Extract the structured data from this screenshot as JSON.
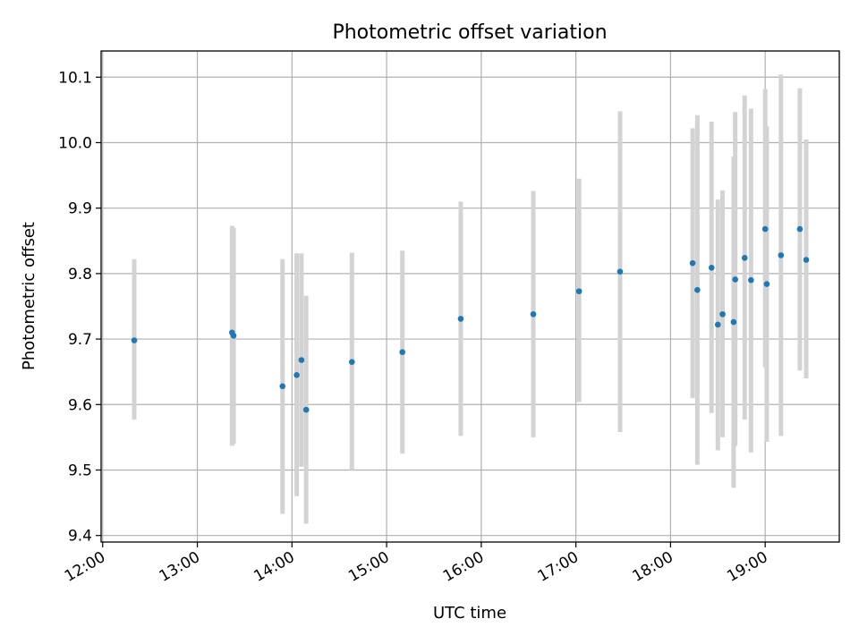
{
  "chart_data": {
    "type": "scatter",
    "title": "Photometric offset variation",
    "xlabel": "UTC time",
    "ylabel": "Photometric offset",
    "x_ticks": [
      "12:00",
      "13:00",
      "14:00",
      "15:00",
      "16:00",
      "17:00",
      "18:00",
      "19:00"
    ],
    "y_ticks": [
      9.4,
      9.5,
      9.6,
      9.7,
      9.8,
      9.9,
      10.0,
      10.1
    ],
    "xlim": [
      "11:59",
      "19:47"
    ],
    "ylim": [
      9.39,
      10.14
    ],
    "grid": true,
    "colors": {
      "points": "#1f77b4",
      "errorbars": "#d3d3d3"
    },
    "points": [
      {
        "time": "12:20",
        "y": 9.698,
        "ylow": 9.577,
        "yhigh": 9.822
      },
      {
        "time": "13:22",
        "y": 9.71,
        "ylow": 9.537,
        "yhigh": 9.873
      },
      {
        "time": "13:23",
        "y": 9.705,
        "ylow": 9.54,
        "yhigh": 9.87
      },
      {
        "time": "13:54",
        "y": 9.628,
        "ylow": 9.433,
        "yhigh": 9.822
      },
      {
        "time": "14:03",
        "y": 9.645,
        "ylow": 9.46,
        "yhigh": 9.831
      },
      {
        "time": "14:06",
        "y": 9.668,
        "ylow": 9.505,
        "yhigh": 9.831
      },
      {
        "time": "14:09",
        "y": 9.592,
        "ylow": 9.418,
        "yhigh": 9.766
      },
      {
        "time": "14:38",
        "y": 9.665,
        "ylow": 9.5,
        "yhigh": 9.832
      },
      {
        "time": "15:10",
        "y": 9.68,
        "ylow": 9.525,
        "yhigh": 9.835
      },
      {
        "time": "15:47",
        "y": 9.731,
        "ylow": 9.552,
        "yhigh": 9.91
      },
      {
        "time": "16:33",
        "y": 9.738,
        "ylow": 9.55,
        "yhigh": 9.926
      },
      {
        "time": "17:02",
        "y": 9.773,
        "ylow": 9.604,
        "yhigh": 9.945
      },
      {
        "time": "17:28",
        "y": 9.803,
        "ylow": 9.558,
        "yhigh": 10.048
      },
      {
        "time": "18:14",
        "y": 9.816,
        "ylow": 9.61,
        "yhigh": 10.022
      },
      {
        "time": "18:17",
        "y": 9.775,
        "ylow": 9.508,
        "yhigh": 10.042
      },
      {
        "time": "18:26",
        "y": 9.809,
        "ylow": 9.587,
        "yhigh": 10.032
      },
      {
        "time": "18:30",
        "y": 9.722,
        "ylow": 9.53,
        "yhigh": 9.913
      },
      {
        "time": "18:33",
        "y": 9.738,
        "ylow": 9.55,
        "yhigh": 9.927
      },
      {
        "time": "18:40",
        "y": 9.726,
        "ylow": 9.473,
        "yhigh": 9.979
      },
      {
        "time": "18:41",
        "y": 9.791,
        "ylow": 9.537,
        "yhigh": 10.047
      },
      {
        "time": "18:47",
        "y": 9.824,
        "ylow": 9.577,
        "yhigh": 10.072
      },
      {
        "time": "18:51",
        "y": 9.79,
        "ylow": 9.527,
        "yhigh": 10.052
      },
      {
        "time": "19:00",
        "y": 9.868,
        "ylow": 9.657,
        "yhigh": 10.082
      },
      {
        "time": "19:01",
        "y": 9.784,
        "ylow": 9.543,
        "yhigh": 10.025
      },
      {
        "time": "19:10",
        "y": 9.828,
        "ylow": 9.552,
        "yhigh": 10.104
      },
      {
        "time": "19:22",
        "y": 9.868,
        "ylow": 9.652,
        "yhigh": 10.083
      },
      {
        "time": "19:26",
        "y": 9.821,
        "ylow": 9.64,
        "yhigh": 10.005
      }
    ]
  }
}
